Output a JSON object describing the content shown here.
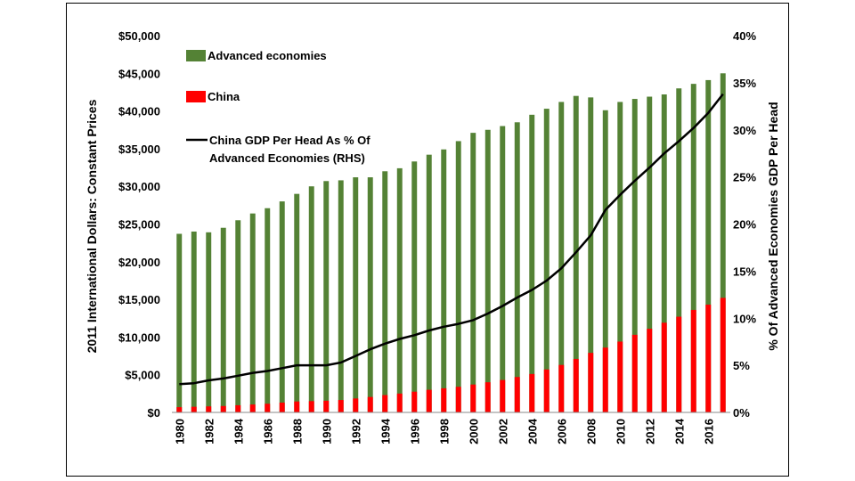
{
  "chart_data": {
    "type": "bar",
    "title": "",
    "x": [
      1980,
      1981,
      1982,
      1983,
      1984,
      1985,
      1986,
      1987,
      1988,
      1989,
      1990,
      1991,
      1992,
      1993,
      1994,
      1995,
      1996,
      1997,
      1998,
      1999,
      2000,
      2001,
      2002,
      2003,
      2004,
      2005,
      2006,
      2007,
      2008,
      2009,
      2010,
      2011,
      2012,
      2013,
      2014,
      2015,
      2016,
      2017
    ],
    "x_tick_labels": [
      "1980",
      "1982",
      "1984",
      "1986",
      "1988",
      "1990",
      "1992",
      "1994",
      "1996",
      "1998",
      "2000",
      "2002",
      "2004",
      "2006",
      "2008",
      "2010",
      "2012",
      "2014",
      "2016"
    ],
    "ylabel": "2011 International Dollars: Constant Prices",
    "y2label": "% Of Advanced Economies GDP Per Head",
    "ylim": [
      0,
      50000
    ],
    "y2lim": [
      0,
      40
    ],
    "y_tick_labels": [
      "$0",
      "$5,000",
      "$10,000",
      "$15,000",
      "$20,000",
      "$25,000",
      "$30,000",
      "$35,000",
      "$40,000",
      "$45,000",
      "$50,000"
    ],
    "y2_tick_labels": [
      "0%",
      "5%",
      "10%",
      "15%",
      "20%",
      "25%",
      "30%",
      "35%",
      "40%"
    ],
    "legend_position": "top-left",
    "series": [
      {
        "name": "Advanced economies",
        "type": "bar",
        "axis": "left",
        "color": "#548235",
        "values": [
          23700,
          24000,
          23900,
          24500,
          25500,
          26400,
          27100,
          28000,
          29000,
          30000,
          30700,
          30800,
          31200,
          31200,
          32000,
          32400,
          33300,
          34200,
          34900,
          36000,
          37100,
          37500,
          38000,
          38500,
          39500,
          40300,
          41200,
          42000,
          41800,
          40100,
          41200,
          41600,
          41900,
          42200,
          43000,
          43600,
          44100,
          45000
        ]
      },
      {
        "name": "China",
        "type": "bar",
        "axis": "left",
        "color": "#ff0000",
        "values": [
          700,
          750,
          800,
          850,
          950,
          1050,
          1150,
          1300,
          1450,
          1500,
          1550,
          1650,
          1850,
          2050,
          2300,
          2500,
          2750,
          3000,
          3200,
          3400,
          3700,
          4000,
          4300,
          4700,
          5100,
          5700,
          6300,
          7100,
          7900,
          8600,
          9400,
          10300,
          11100,
          11900,
          12700,
          13600,
          14300,
          15200
        ]
      },
      {
        "name": "China GDP Per Head As % Of Advanced Economies (RHS)",
        "type": "line",
        "axis": "right",
        "color": "#000000",
        "values": [
          3.0,
          3.1,
          3.4,
          3.6,
          3.9,
          4.2,
          4.4,
          4.7,
          5.0,
          5.0,
          5.0,
          5.3,
          6.0,
          6.7,
          7.3,
          7.8,
          8.2,
          8.7,
          9.1,
          9.4,
          9.8,
          10.5,
          11.3,
          12.2,
          13.0,
          14.0,
          15.3,
          17.0,
          18.8,
          21.5,
          23.1,
          24.6,
          26.0,
          27.5,
          28.8,
          30.2,
          31.8,
          33.8
        ]
      }
    ],
    "legend": {
      "entries": [
        "Advanced economies",
        "China",
        "China GDP Per Head As % Of",
        "Advanced Economies (RHS)"
      ]
    }
  }
}
